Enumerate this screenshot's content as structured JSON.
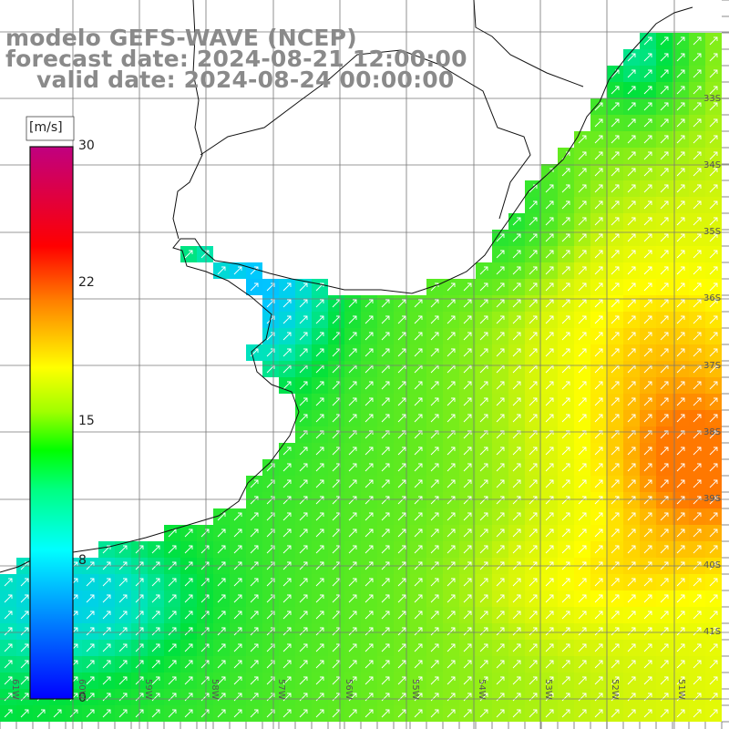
{
  "title": {
    "line1": "modelo GEFS-WAVE (NCEP)",
    "line2": "forecast date: 2024-08-21 12:00:00",
    "line3": "valid date: 2024-08-24 00:00:00"
  },
  "colorbar": {
    "unit": "[m/s]",
    "ticks": [
      "30",
      "22",
      "15",
      "8",
      "0"
    ],
    "colors": [
      "#0000ff",
      "#00a0ff",
      "#00ffff",
      "#00ff40",
      "#ffff00",
      "#ff8000",
      "#ff0000",
      "#c00080"
    ]
  },
  "latitude_labels": [
    "33S",
    "34S",
    "35S",
    "36S",
    "37S",
    "38S",
    "39S",
    "40S",
    "41S"
  ],
  "longitude_labels": [
    "61W",
    "60W",
    "59W",
    "58W",
    "57W",
    "56W",
    "55W",
    "54W",
    "53W",
    "52W",
    "51W"
  ],
  "field": {
    "variable": "wind speed",
    "arrow_direction": "northeast",
    "low_color": "#1060ff",
    "mid_color": "#00e000",
    "high_color": "#ffff00",
    "peak_color": "#ff8800"
  }
}
